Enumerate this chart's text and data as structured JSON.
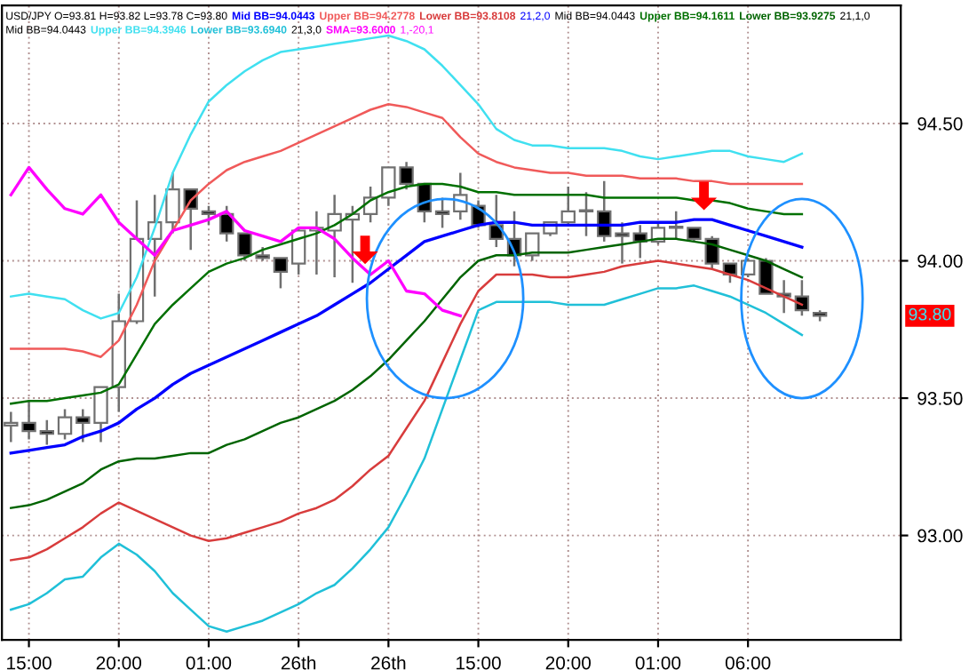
{
  "chart_data": {
    "type": "candlestick",
    "categories": [
      null,
      "15:00",
      null,
      null,
      null,
      null,
      "20:00",
      null,
      null,
      null,
      null,
      "01:00",
      null,
      null,
      null,
      null,
      "26th",
      null,
      null,
      null,
      null,
      "26th",
      null,
      null,
      null,
      null,
      "15:00",
      null,
      null,
      null,
      null,
      "20:00",
      null,
      null,
      null,
      null,
      "01:00",
      null,
      null,
      null,
      null,
      "06:00",
      null,
      null,
      null,
      null,
      null,
      null,
      null,
      null
    ],
    "ohlc": [
      [
        93.4,
        93.45,
        93.34,
        93.41
      ],
      [
        93.41,
        93.49,
        93.35,
        93.38
      ],
      [
        93.38,
        93.42,
        93.33,
        93.37
      ],
      [
        93.37,
        93.46,
        93.35,
        93.43
      ],
      [
        93.43,
        93.46,
        93.34,
        93.41
      ],
      [
        93.41,
        93.54,
        93.34,
        93.54
      ],
      [
        93.54,
        93.88,
        93.45,
        93.78
      ],
      [
        93.78,
        94.22,
        93.77,
        94.08
      ],
      [
        94.08,
        94.24,
        93.87,
        94.14
      ],
      [
        94.14,
        94.32,
        94.1,
        94.26
      ],
      [
        94.26,
        94.26,
        94.04,
        94.19
      ],
      [
        94.18,
        94.2,
        94.13,
        94.17
      ],
      [
        94.17,
        94.2,
        94.07,
        94.1
      ],
      [
        94.1,
        94.1,
        94.0,
        94.02
      ],
      [
        94.02,
        94.05,
        94.0,
        94.01
      ],
      [
        94.01,
        94.01,
        93.9,
        93.96
      ],
      [
        93.99,
        94.12,
        93.95,
        94.11
      ],
      [
        94.11,
        94.18,
        93.95,
        94.12
      ],
      [
        94.11,
        94.24,
        93.94,
        94.17
      ],
      [
        94.15,
        94.2,
        93.92,
        94.17
      ],
      [
        94.17,
        94.27,
        94.14,
        94.23
      ],
      [
        94.23,
        94.34,
        94.2,
        94.34
      ],
      [
        94.34,
        94.36,
        94.26,
        94.28
      ],
      [
        94.28,
        94.28,
        94.14,
        94.18
      ],
      [
        94.18,
        94.23,
        94.12,
        94.17
      ],
      [
        94.18,
        94.32,
        94.15,
        94.24
      ],
      [
        94.2,
        94.22,
        94.12,
        94.13
      ],
      [
        94.13,
        94.24,
        94.05,
        94.08
      ],
      [
        94.08,
        94.18,
        93.98,
        94.02
      ],
      [
        94.02,
        94.1,
        94.0,
        94.1
      ],
      [
        94.1,
        94.14,
        94.09,
        94.14
      ],
      [
        94.14,
        94.27,
        94.13,
        94.18
      ],
      [
        94.18,
        94.25,
        94.09,
        94.18
      ],
      [
        94.18,
        94.29,
        94.07,
        94.09
      ],
      [
        94.1,
        94.14,
        93.99,
        94.09
      ],
      [
        94.1,
        94.13,
        94.01,
        94.07
      ],
      [
        94.07,
        94.14,
        94.06,
        94.12
      ],
      [
        94.12,
        94.18,
        94.08,
        94.12
      ],
      [
        94.12,
        94.12,
        94.07,
        94.08
      ],
      [
        94.08,
        94.09,
        93.97,
        93.99
      ],
      [
        93.99,
        93.99,
        93.92,
        93.95
      ],
      [
        93.95,
        94.01,
        93.94,
        94.0
      ],
      [
        94.0,
        94.01,
        93.88,
        93.88
      ],
      [
        93.88,
        93.93,
        93.81,
        93.87
      ],
      [
        93.87,
        93.93,
        93.8,
        93.82
      ],
      [
        93.81,
        93.82,
        93.78,
        93.8
      ],
      null,
      null,
      null,
      null
    ],
    "series": [
      {
        "type": "line",
        "name": "Mid BB=94.0443",
        "color": "#0000ff",
        "values": [
          93.3,
          93.31,
          93.32,
          93.33,
          93.36,
          93.38,
          93.41,
          93.46,
          93.5,
          93.55,
          93.59,
          93.62,
          93.65,
          93.68,
          93.71,
          93.74,
          93.77,
          93.8,
          93.84,
          93.88,
          93.92,
          93.97,
          94.02,
          94.07,
          94.09,
          94.11,
          94.13,
          94.14,
          94.14,
          94.13,
          94.13,
          94.13,
          94.13,
          94.13,
          94.13,
          94.14,
          94.14,
          94.14,
          94.15,
          94.15,
          94.13,
          94.11,
          94.09,
          94.07,
          94.05,
          null,
          null,
          null,
          null,
          null
        ]
      },
      {
        "type": "line",
        "name": "Upper BB=94.2778",
        "color": "#f05a5a",
        "values": [
          93.68,
          93.68,
          93.68,
          93.68,
          93.67,
          93.65,
          93.71,
          93.84,
          94.0,
          94.11,
          94.22,
          94.28,
          94.33,
          94.36,
          94.38,
          94.4,
          94.43,
          94.46,
          94.49,
          94.52,
          94.55,
          94.57,
          94.56,
          94.54,
          94.52,
          94.45,
          94.39,
          94.36,
          94.34,
          94.33,
          94.32,
          94.32,
          94.31,
          94.31,
          94.31,
          94.3,
          94.3,
          94.3,
          94.29,
          94.29,
          94.28,
          94.28,
          94.28,
          94.28,
          94.28,
          null,
          null,
          null,
          null,
          null
        ]
      },
      {
        "type": "line",
        "name": "Lower BB=93.8108",
        "color": "#d83c3c",
        "values": [
          92.91,
          92.92,
          92.95,
          92.99,
          93.03,
          93.08,
          93.12,
          93.09,
          93.06,
          93.03,
          93.0,
          92.98,
          92.99,
          93.01,
          93.03,
          93.05,
          93.08,
          93.1,
          93.13,
          93.18,
          93.24,
          93.29,
          93.39,
          93.49,
          93.63,
          93.77,
          93.89,
          93.95,
          93.95,
          93.95,
          93.94,
          93.94,
          93.95,
          93.96,
          93.98,
          93.99,
          94.0,
          93.99,
          93.98,
          93.97,
          93.95,
          93.93,
          93.9,
          93.87,
          93.84,
          null,
          null,
          null,
          null,
          null
        ]
      },
      {
        "type": "line",
        "name": "Upper BB=94.1611",
        "color": "#007000",
        "values": [
          93.48,
          93.49,
          93.49,
          93.5,
          93.51,
          93.52,
          93.55,
          93.66,
          93.77,
          93.84,
          93.9,
          93.96,
          93.99,
          94.01,
          94.04,
          94.06,
          94.08,
          94.1,
          94.13,
          94.17,
          94.22,
          94.25,
          94.27,
          94.28,
          94.28,
          94.27,
          94.25,
          94.25,
          94.24,
          94.24,
          94.24,
          94.24,
          94.24,
          94.23,
          94.23,
          94.23,
          94.23,
          94.23,
          94.22,
          94.22,
          94.21,
          94.19,
          94.18,
          94.17,
          94.17,
          null,
          null,
          null,
          null,
          null
        ]
      },
      {
        "type": "line",
        "name": "Lower BB=93.9275",
        "color": "#006400",
        "values": [
          93.1,
          93.11,
          93.13,
          93.16,
          93.19,
          93.24,
          93.27,
          93.28,
          93.28,
          93.29,
          93.3,
          93.3,
          93.33,
          93.35,
          93.38,
          93.41,
          93.43,
          93.46,
          93.49,
          93.53,
          93.58,
          93.64,
          93.71,
          93.78,
          93.86,
          93.94,
          94.0,
          94.02,
          94.02,
          94.03,
          94.03,
          94.03,
          94.04,
          94.05,
          94.06,
          94.07,
          94.08,
          94.08,
          94.07,
          94.06,
          94.04,
          94.02,
          94.0,
          93.97,
          93.94,
          null,
          null,
          null,
          null,
          null
        ]
      },
      {
        "type": "line",
        "name": "Upper BB=94.3946",
        "color": "#40e0f0",
        "values": [
          93.87,
          93.88,
          93.87,
          93.86,
          93.82,
          93.79,
          93.81,
          93.94,
          94.12,
          94.32,
          94.46,
          94.58,
          94.64,
          94.69,
          94.73,
          94.76,
          94.77,
          94.78,
          94.79,
          94.8,
          94.81,
          94.82,
          94.8,
          94.77,
          94.71,
          94.64,
          94.57,
          94.48,
          94.44,
          94.42,
          94.42,
          94.41,
          94.41,
          94.41,
          94.4,
          94.38,
          94.37,
          94.38,
          94.39,
          94.4,
          94.4,
          94.38,
          94.37,
          94.36,
          94.39,
          null,
          null,
          null,
          null,
          null
        ]
      },
      {
        "type": "line",
        "name": "Lower BB=93.6940",
        "color": "#20c0d8",
        "values": [
          92.73,
          92.75,
          92.79,
          92.84,
          92.85,
          92.92,
          92.97,
          92.93,
          92.87,
          92.79,
          92.73,
          92.67,
          92.65,
          92.67,
          92.69,
          92.72,
          92.75,
          92.79,
          92.82,
          92.88,
          92.95,
          93.03,
          93.15,
          93.28,
          93.46,
          93.64,
          93.82,
          93.85,
          93.85,
          93.85,
          93.85,
          93.84,
          93.84,
          93.84,
          93.86,
          93.88,
          93.9,
          93.9,
          93.91,
          93.89,
          93.87,
          93.84,
          93.81,
          93.77,
          93.73,
          null,
          null,
          null,
          null,
          null
        ]
      },
      {
        "type": "line",
        "name": "SMA=93.6000",
        "color": "#ff00ff",
        "values": [
          94.24,
          94.34,
          94.26,
          94.19,
          94.17,
          94.24,
          94.14,
          94.08,
          94.02,
          94.11,
          94.13,
          94.15,
          94.18,
          94.11,
          94.09,
          94.07,
          94.12,
          94.12,
          94.08,
          94.01,
          93.95,
          94.0,
          93.89,
          93.88,
          93.82,
          93.8,
          null,
          null,
          null,
          null,
          null,
          null,
          null,
          null,
          null,
          null,
          null,
          null,
          null,
          null,
          null,
          null,
          null,
          null,
          null,
          null,
          null,
          null,
          null,
          null
        ]
      }
    ],
    "annotations": [
      "USD/JPY O=93.81 H=93.82 L=93.78 C=93.80",
      "21,2,0",
      "Mid BB=94.0443",
      "21,1,0",
      "Mid BB=94.0443",
      "21,3,0",
      "1,-20,1",
      "93.80"
    ],
    "ylim": [
      92.62,
      94.93
    ],
    "yticks": [
      {
        "value": 93,
        "label": "93.00"
      },
      {
        "value": 93.5,
        "label": "93.50"
      },
      {
        "value": 94,
        "label": "94.00"
      },
      {
        "value": 94.5,
        "label": "94.50"
      }
    ],
    "grid": true,
    "legend": "top",
    "marker": "none",
    "line_style": "solid"
  }
}
